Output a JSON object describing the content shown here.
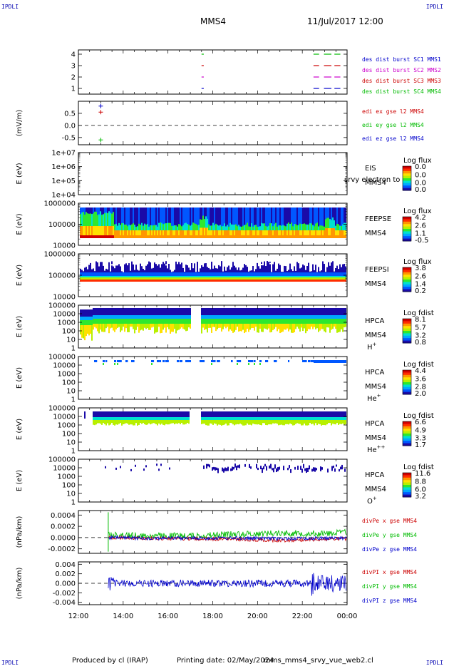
{
  "header": {
    "corner_left": "IPDLI",
    "corner_right": "IPDLI",
    "title": "MMS4",
    "datetime": "11/Jul/2017 12:00"
  },
  "footer": {
    "produced_by": "Produced by cl (IRAP)",
    "printing_date": "Printing date: 02/May/2024",
    "script_name": "mms_mms4_srvy_vue_web2.cl",
    "corner_left": "IPDLI",
    "corner_right": "IPDLI"
  },
  "colors": {
    "red": "#cc0000",
    "green": "#00bb00",
    "blue": "#0000cc",
    "magenta": "#cc00cc",
    "legend_blue": "#000099"
  },
  "chart_data": {
    "type": "line",
    "x_range": [
      "12:00",
      "00:00"
    ],
    "x_ticks": [
      "12:00",
      "14:00",
      "16:00",
      "18:00",
      "20:00",
      "22:00",
      "00:00"
    ],
    "panels": [
      {
        "id": "burst",
        "type": "scatter",
        "ylabel": "",
        "yticks": [
          "4",
          "3",
          "2",
          "1"
        ],
        "legend": [
          "des dist burst SC1 MMS1",
          "des dist burst SC2 MMS2",
          "des dist burst SC3 MMS3",
          "des dist burst SC4 MMS4"
        ],
        "legend_colors": [
          "#0000cc",
          "#cc00cc",
          "#cc0000",
          "#00bb00"
        ],
        "intervals": [
          {
            "x": [
              "17:30",
              "17:36"
            ],
            "levels": [
              4,
              3,
              2,
              1
            ]
          },
          {
            "x": [
              "22:30",
              "22:45"
            ],
            "levels": [
              4,
              3,
              2,
              1
            ]
          },
          {
            "x": [
              "22:58",
              "23:18"
            ],
            "levels": [
              4,
              3,
              2,
              1
            ]
          },
          {
            "x": [
              "23:26",
              "23:42"
            ],
            "levels": [
              4,
              3,
              2,
              1
            ]
          }
        ]
      },
      {
        "id": "edi",
        "type": "scatter",
        "ylabel": "(mV/m)",
        "yticks": [
          "0.5",
          "0.0",
          "-0.5"
        ],
        "ylim": [
          -0.8,
          1.0
        ],
        "legend": [
          "edi ex gse l2 MMS4",
          "edi ey gse l2 MMS4",
          "edi ez gse l2 MMS4"
        ],
        "legend_colors": [
          "#cc0000",
          "#00bb00",
          "#0000cc"
        ],
        "points": [
          {
            "x": "13:00",
            "y": 0.8,
            "series": "ez"
          },
          {
            "x": "13:00",
            "y": 0.55,
            "series": "ex"
          },
          {
            "x": "13:00",
            "y": -0.6,
            "series": "ey"
          }
        ]
      },
      {
        "id": "eis",
        "type": "heatmap",
        "ylabel": "E (eV)",
        "yticks": [
          "1e+07",
          "1e+06",
          "1e+05",
          "1e+04"
        ],
        "labels": [
          "EIS",
          "MMS4"
        ],
        "overlay_text": "srvy electron to",
        "colorbar_title": "Log flux",
        "colorbar_ticks": [
          "0.0",
          "0.0",
          "0.0",
          "0.0"
        ]
      },
      {
        "id": "feepse",
        "type": "heatmap",
        "ylabel": "E (eV)",
        "yticks": [
          "1000000",
          "100000",
          "10000"
        ],
        "labels": [
          "FEEPSE",
          "MMS4"
        ],
        "colorbar_title": "Log flux",
        "colorbar_ticks": [
          "4.2",
          "2.6",
          "1.1",
          "-0.5"
        ]
      },
      {
        "id": "feepsi",
        "type": "heatmap",
        "ylabel": "E (eV)",
        "yticks": [
          "1000000",
          "100000",
          "10000"
        ],
        "labels": [
          "FEEPSI",
          "MMS4"
        ],
        "colorbar_title": "Log flux",
        "colorbar_ticks": [
          "3.8",
          "2.6",
          "1.4",
          "0.2"
        ]
      },
      {
        "id": "hpca_h",
        "type": "heatmap",
        "ylabel": "E (eV)",
        "yticks": [
          "100000",
          "10000",
          "1000",
          "100",
          "10",
          "1"
        ],
        "labels": [
          "HPCA",
          "MMS4"
        ],
        "species": "H",
        "species_charge": "+",
        "colorbar_title": "Log fdist",
        "colorbar_ticks": [
          "8.1",
          "5.7",
          "3.2",
          "0.8"
        ]
      },
      {
        "id": "hpca_he1",
        "type": "heatmap",
        "ylabel": "E (eV)",
        "yticks": [
          "100000",
          "10000",
          "1000",
          "100",
          "10",
          "1"
        ],
        "labels": [
          "HPCA",
          "MMS4"
        ],
        "species": "He",
        "species_charge": "+",
        "colorbar_title": "Log fdist",
        "colorbar_ticks": [
          "4.4",
          "3.6",
          "2.8",
          "2.0"
        ]
      },
      {
        "id": "hpca_he2",
        "type": "heatmap",
        "ylabel": "E (eV)",
        "yticks": [
          "100000",
          "10000",
          "1000",
          "100",
          "10",
          "1"
        ],
        "labels": [
          "HPCA",
          "MMS4"
        ],
        "species": "He",
        "species_charge": "++",
        "colorbar_title": "Log fdist",
        "colorbar_ticks": [
          "6.6",
          "4.9",
          "3.3",
          "1.7"
        ]
      },
      {
        "id": "hpca_o",
        "type": "heatmap",
        "ylabel": "E (eV)",
        "yticks": [
          "100000",
          "10000",
          "1000",
          "100",
          "10",
          "1"
        ],
        "labels": [
          "HPCA",
          "MMS4"
        ],
        "species": "O",
        "species_charge": "+",
        "colorbar_title": "Log fdist",
        "colorbar_ticks": [
          "11.6",
          "8.8",
          "6.0",
          "3.2"
        ]
      },
      {
        "id": "divpe",
        "type": "line",
        "ylabel": "(nPa/km)",
        "yticks": [
          "0.0004",
          "0.0002",
          "0.0000",
          "-0.0002"
        ],
        "ylim": [
          -0.00028,
          0.00048
        ],
        "legend": [
          "divPe x gse MMS4",
          "divPe y gse MMS4",
          "divPe z gse MMS4"
        ],
        "legend_colors": [
          "#cc0000",
          "#00bb00",
          "#0000cc"
        ],
        "series": [
          {
            "name": "divPe x gse MMS4",
            "x": [
              "13:20",
              "15:00",
              "17:00",
              "19:00",
              "21:00",
              "23:00",
              "00:00"
            ],
            "values": [
              0.0,
              -1e-05,
              -2e-05,
              -3e-05,
              -5e-05,
              -3e-05,
              -2e-05
            ]
          },
          {
            "name": "divPe y gse MMS4",
            "x": [
              "13:20",
              "15:00",
              "17:00",
              "19:00",
              "21:00",
              "23:00",
              "00:00"
            ],
            "values": [
              5e-05,
              3e-05,
              3e-05,
              6e-05,
              8e-05,
              7e-05,
              0.0001
            ]
          },
          {
            "name": "divPe z gse MMS4",
            "x": [
              "13:20",
              "15:00",
              "17:00",
              "19:00",
              "21:00",
              "23:00",
              "00:00"
            ],
            "values": [
              0.0,
              -1e-05,
              -1e-05,
              -1e-05,
              -2e-05,
              -1e-05,
              -1e-05
            ]
          }
        ]
      },
      {
        "id": "divpi",
        "type": "line",
        "ylabel": "(nPa/km)",
        "yticks": [
          "0.004",
          "0.002",
          "0.000",
          "-0.002",
          "-0.004"
        ],
        "ylim": [
          -0.0045,
          0.0045
        ],
        "legend": [
          "divPI x gse MMS4",
          "divPI y gse MMS4",
          "divPI z gse MMS4"
        ],
        "legend_colors": [
          "#cc0000",
          "#00bb00",
          "#0000cc"
        ],
        "series": [
          {
            "name": "divPI z gse MMS4",
            "x": [
              "13:20",
              "15:00",
              "17:00",
              "19:00",
              "21:00",
              "22:40",
              "00:00"
            ],
            "values": [
              0.0,
              0.0,
              0.0,
              0.0,
              0.0,
              0.0,
              0.0
            ]
          }
        ]
      }
    ]
  }
}
